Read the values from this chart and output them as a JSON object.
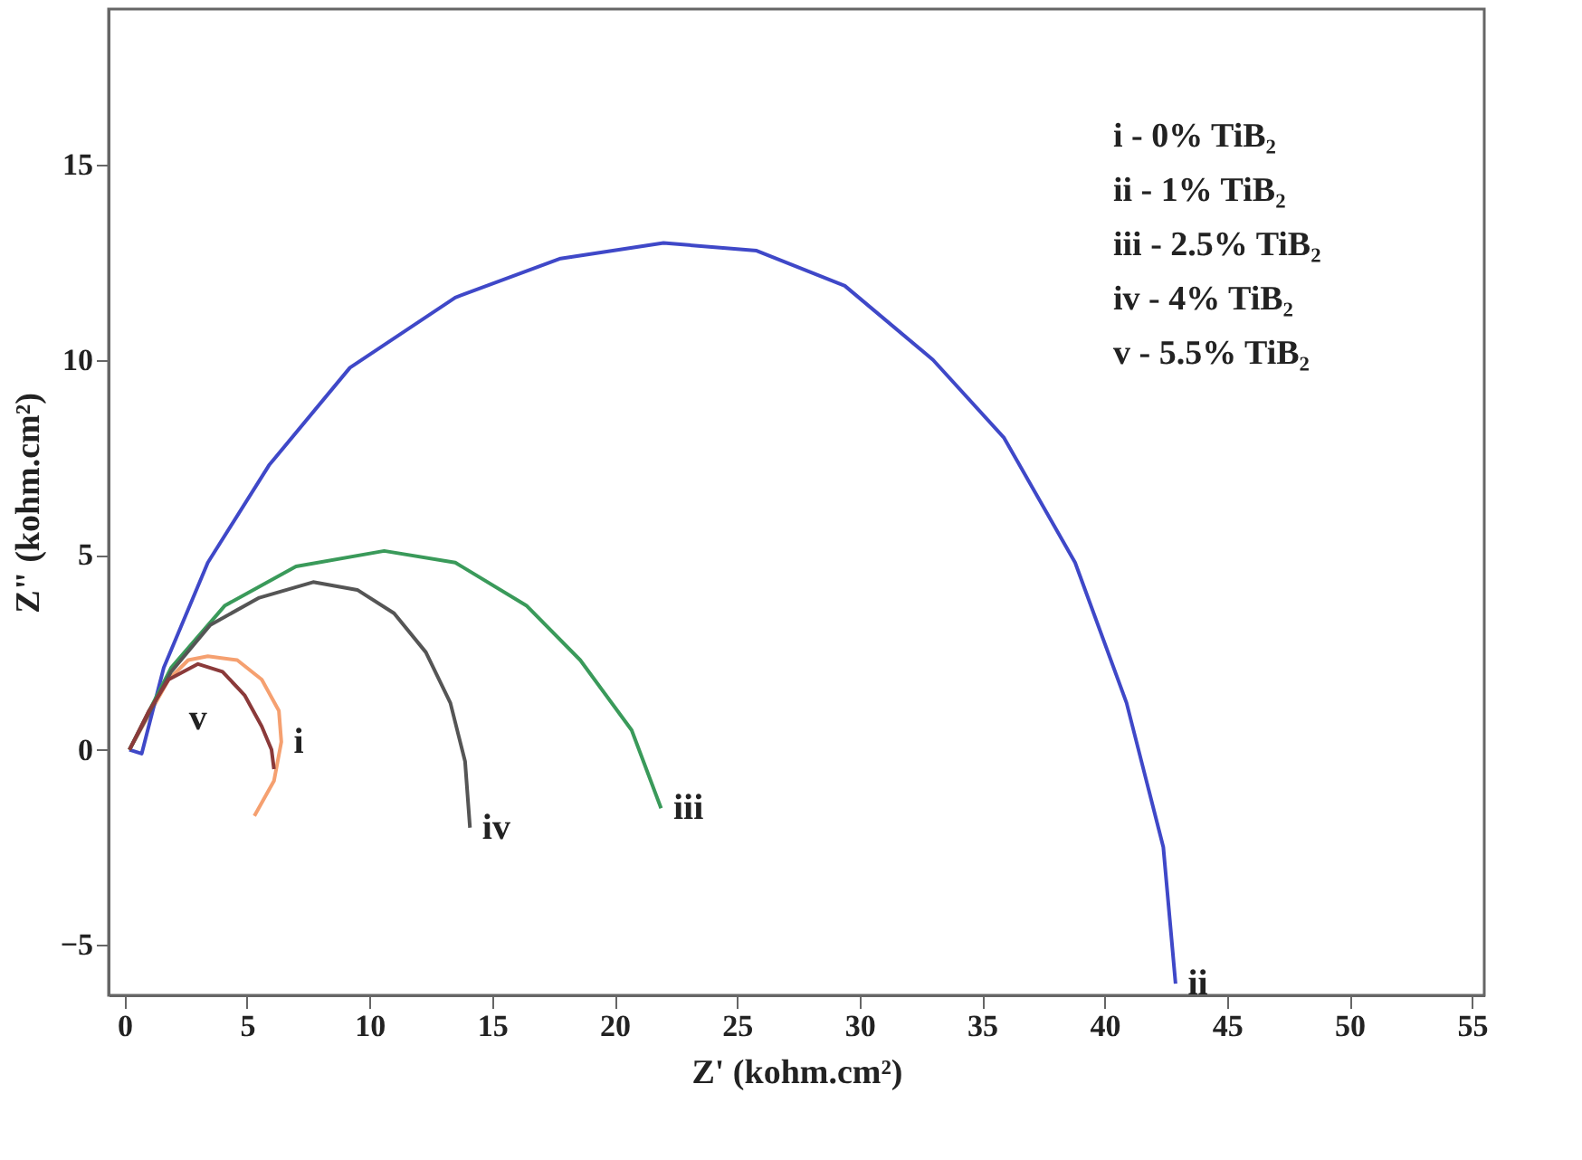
{
  "chart_data": {
    "type": "line",
    "xlabel": "Z' (kohm.cm²)",
    "ylabel": "Z\" (kohm.cm²)",
    "xlim": [
      -0.65,
      55.5
    ],
    "ylim": [
      -6.3,
      19
    ],
    "xticks": [
      0,
      5,
      10,
      15,
      20,
      25,
      30,
      35,
      40,
      45,
      50,
      55
    ],
    "yticks": [
      -5,
      0,
      5,
      10,
      15
    ],
    "grid": false,
    "marker": "none",
    "line_style": "solid",
    "series": [
      {
        "name": "i",
        "color": "#f5a070",
        "x": [
          0.2,
          1,
          1.8,
          2.6,
          3.4,
          4.6,
          5.6,
          6.3,
          6.4,
          6.1,
          5.3
        ],
        "values": [
          0,
          0.9,
          1.8,
          2.3,
          2.4,
          2.3,
          1.8,
          1.0,
          0.2,
          -0.8,
          -1.7
        ]
      },
      {
        "name": "ii",
        "color": "#3f48c8",
        "x": [
          0.2,
          0.7,
          1.6,
          3.4,
          5.9,
          9.2,
          13.5,
          17.8,
          22,
          25.8,
          29.4,
          33,
          35.9,
          38.8,
          40.9,
          42.4,
          42.9
        ],
        "values": [
          0,
          -0.1,
          2.1,
          4.8,
          7.3,
          9.8,
          11.6,
          12.6,
          13.0,
          12.8,
          11.9,
          10.0,
          8.0,
          4.8,
          1.2,
          -2.5,
          -6.0
        ]
      },
      {
        "name": "iii",
        "color": "#3a9a5a",
        "x": [
          0.2,
          1.9,
          4.1,
          7,
          10.6,
          13.5,
          16.4,
          18.6,
          20.7,
          21.9
        ],
        "values": [
          0,
          2.1,
          3.7,
          4.7,
          5.1,
          4.8,
          3.7,
          2.3,
          0.5,
          -1.5
        ]
      },
      {
        "name": "iv",
        "color": "#555555",
        "x": [
          0.2,
          1.9,
          3.5,
          5.5,
          7.7,
          9.5,
          11,
          12.3,
          13.3,
          13.9,
          14.1
        ],
        "values": [
          0,
          2.0,
          3.2,
          3.9,
          4.3,
          4.1,
          3.5,
          2.5,
          1.2,
          -0.3,
          -2.0
        ]
      },
      {
        "name": "v",
        "color": "#8b3a3a",
        "x": [
          0.2,
          1,
          1.8,
          3.0,
          4.0,
          4.9,
          5.6,
          6.0,
          6.1
        ],
        "values": [
          0,
          1.0,
          1.8,
          2.2,
          2.0,
          1.4,
          0.6,
          0,
          -0.5
        ]
      }
    ],
    "annotations": [
      "i - 0% TiB₂",
      "ii - 1% TiB₂",
      "iii - 2.5% TiB₂",
      "iv - 4% TiB₂",
      "v - 5.5% TiB₂"
    ]
  }
}
